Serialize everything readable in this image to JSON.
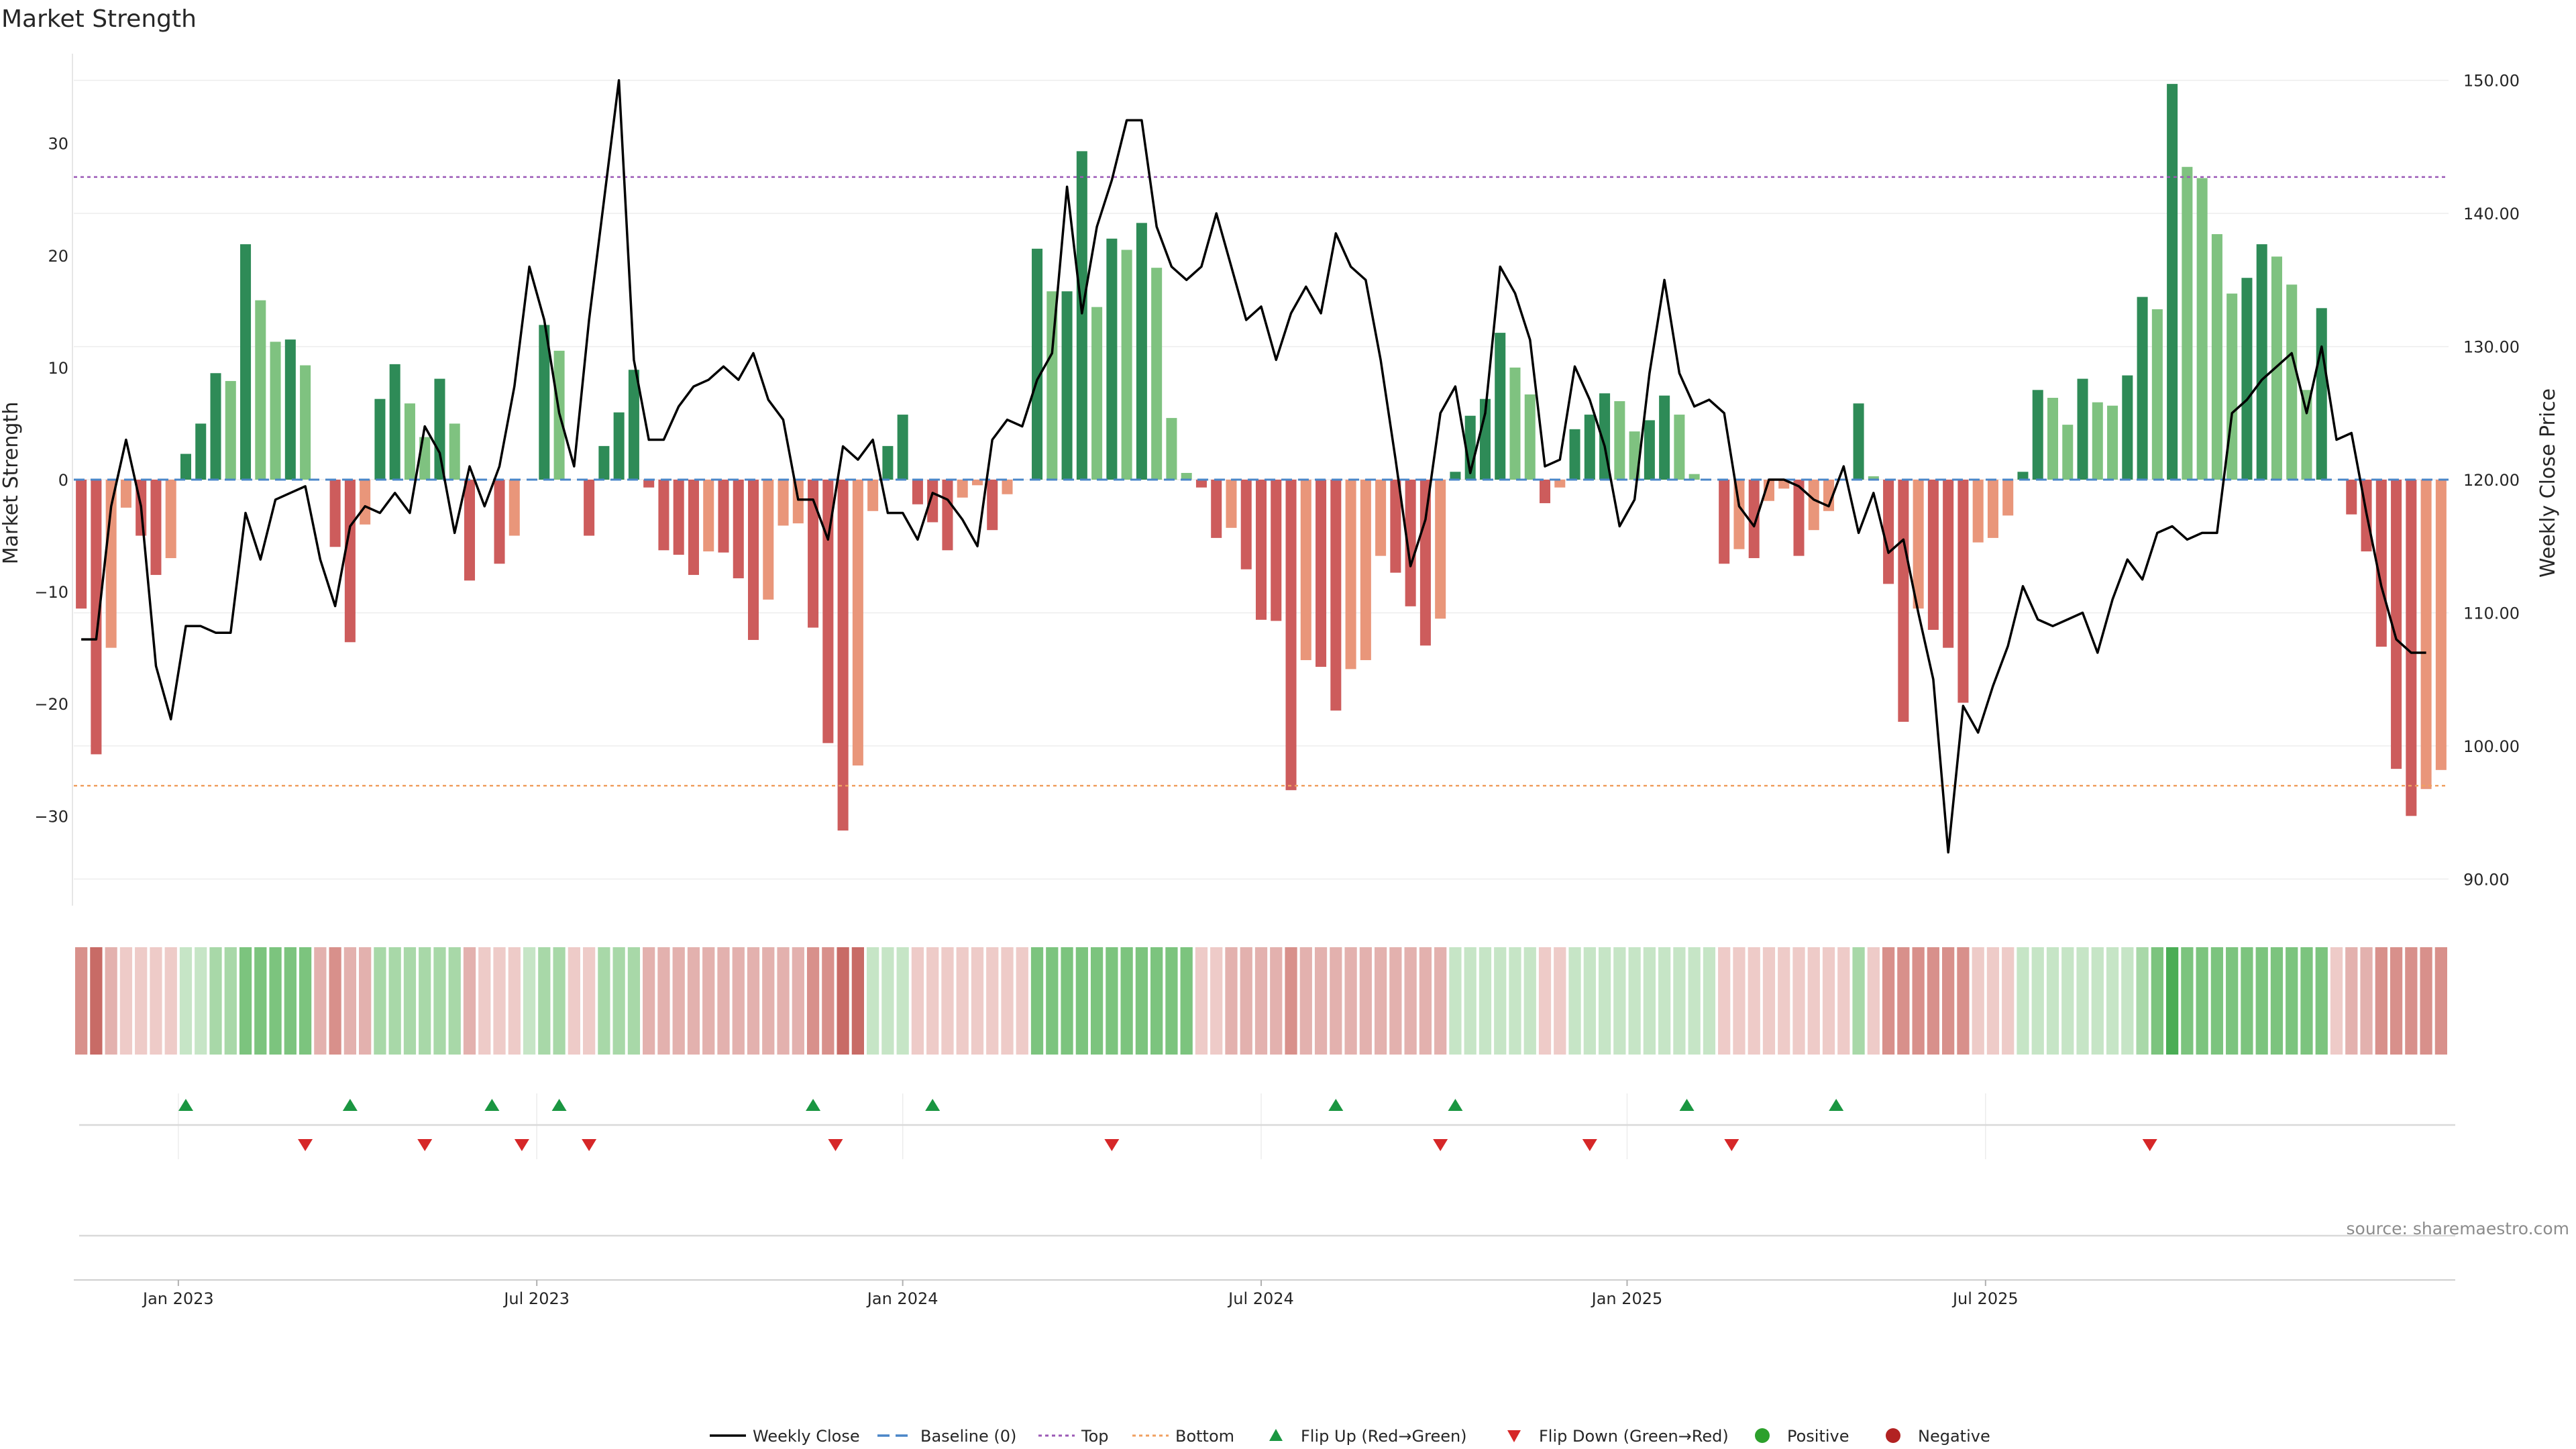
{
  "chart_data": {
    "type": "bar",
    "title": "Market Strength",
    "ylabel": "Market Strength",
    "y2label": "Weekly Close Price",
    "ylim": [
      -38,
      38
    ],
    "y2lim": [
      88,
      152
    ],
    "yticks": [
      -30,
      -20,
      -10,
      0,
      10,
      20,
      30
    ],
    "y2ticks": [
      "90.00",
      "100.00",
      "110.00",
      "120.00",
      "130.00",
      "140.00",
      "150.00"
    ],
    "y2tick_values": [
      90,
      100,
      110,
      120,
      130,
      140,
      150
    ],
    "xtick_labels": [
      "Jan 2023",
      "Jul 2023",
      "Jan 2024",
      "Jul 2024",
      "Jan 2025",
      "Jul 2025"
    ],
    "xtick_weeks": [
      6.5,
      30.5,
      55,
      79,
      103.5,
      127.5
    ],
    "top_line": 27,
    "bottom_line": -27.3,
    "source": "source: sharemaestro.com",
    "strength": [
      -11.5,
      -24.5,
      -15,
      -2.5,
      -5,
      -8.5,
      -7,
      2.3,
      5,
      9.5,
      8.8,
      21,
      16,
      12.3,
      12.5,
      10.2,
      0,
      -6,
      -14.5,
      -4,
      7.2,
      10.3,
      6.8,
      3.8,
      9,
      5,
      -9,
      0,
      -7.5,
      -5,
      0,
      13.8,
      11.5,
      0,
      -5,
      3,
      6,
      9.8,
      -0.7,
      -6.3,
      -6.7,
      -8.5,
      -6.4,
      -6.5,
      -8.8,
      -14.3,
      -10.7,
      -4.1,
      -3.9,
      -13.2,
      -23.5,
      -31.3,
      -25.5,
      -2.8,
      3,
      5.8,
      -2.2,
      -3.8,
      -6.3,
      -1.6,
      -0.5,
      -4.5,
      -1.3,
      0,
      20.6,
      16.8,
      16.8,
      29.3,
      15.4,
      21.5,
      20.5,
      22.9,
      18.9,
      5.5,
      0.6,
      -0.7,
      -5.2,
      -4.3,
      -8,
      -12.5,
      -12.6,
      -27.7,
      -16.1,
      -16.7,
      -20.6,
      -16.9,
      -16.1,
      -6.8,
      -8.3,
      -11.3,
      -14.8,
      -12.4,
      0.7,
      5.7,
      7.2,
      13.1,
      10,
      7.6,
      -2.1,
      -0.7,
      4.5,
      5.8,
      7.7,
      7,
      4.3,
      5.3,
      7.5,
      5.8,
      0.5,
      0,
      -7.5,
      -6.2,
      -7,
      -1.9,
      -0.8,
      -6.8,
      -4.5,
      -2.8,
      0,
      6.8,
      0.3,
      -9.3,
      -21.6,
      -11.5,
      -13.4,
      -15,
      -19.9,
      -5.6,
      -5.2,
      -3.2,
      0.7,
      8,
      7.3,
      4.9,
      9,
      6.9,
      6.6,
      9.3,
      16.3,
      15.2,
      35.3,
      27.9,
      26.9,
      21.9,
      16.6,
      18,
      21,
      19.9,
      17.4,
      8,
      15.3,
      0,
      -3.1,
      -6.4,
      -14.9,
      -25.8,
      -30,
      -27.6,
      -25.9
    ],
    "weekly_close": [
      108,
      108,
      118,
      123,
      118,
      106,
      102,
      109,
      109,
      108.5,
      108.5,
      117.5,
      114,
      118.5,
      119,
      119.5,
      114,
      110.5,
      116.5,
      118,
      117.5,
      119,
      117.5,
      124,
      122,
      116,
      121,
      118,
      121,
      127,
      136,
      132,
      125,
      121,
      132,
      141,
      150,
      129,
      123,
      123,
      125.5,
      127,
      127.5,
      128.5,
      127.5,
      129.5,
      126,
      124.5,
      118.5,
      118.5,
      115.5,
      122.5,
      121.5,
      123,
      117.5,
      117.5,
      115.5,
      119,
      118.5,
      117,
      115,
      123,
      124.5,
      124,
      127.5,
      129.5,
      142,
      132.5,
      139,
      142.5,
      147,
      147,
      139,
      136,
      135,
      136,
      140,
      136,
      132,
      133,
      129,
      132.5,
      134.5,
      132.5,
      138.5,
      136,
      135,
      129,
      121.5,
      113.5,
      117,
      125,
      127,
      120.5,
      125,
      136,
      134,
      130.5,
      121,
      121.5,
      128.5,
      126,
      122.5,
      116.5,
      118.5,
      128,
      135,
      128,
      125.5,
      126,
      125,
      118,
      116.5,
      120,
      120,
      119.5,
      118.5,
      118,
      121,
      116,
      119,
      114.5,
      115.5,
      110,
      105,
      92,
      103,
      101,
      104.5,
      107.5,
      112,
      109.5,
      109,
      109.5,
      110,
      107,
      111,
      114,
      112.5,
      116,
      116.5,
      115.5,
      116,
      116,
      125,
      126,
      127.5,
      128.5,
      129.5,
      125,
      130,
      123,
      123.5,
      117.5,
      112,
      108,
      107,
      107
    ],
    "heat_strip_levels": [
      -3,
      -4,
      -2,
      -1,
      -1,
      -1,
      -1,
      1,
      1,
      2,
      2,
      3,
      3,
      3,
      3,
      3,
      -2,
      -3,
      -2,
      -2,
      2,
      2,
      2,
      2,
      2,
      2,
      -2,
      -1,
      -1,
      -1,
      1,
      2,
      2,
      -1,
      -1,
      2,
      2,
      2,
      -2,
      -2,
      -2,
      -2,
      -2,
      -2,
      -2,
      -2,
      -2,
      -2,
      -2,
      -3,
      -3,
      -4,
      -4,
      1,
      1,
      1,
      -1,
      -1,
      -1,
      -1,
      -1,
      -1,
      -1,
      -1,
      3,
      3,
      3,
      3,
      3,
      3,
      3,
      3,
      3,
      3,
      3,
      -1,
      -1,
      -2,
      -2,
      -2,
      -2,
      -3,
      -2,
      -2,
      -2,
      -2,
      -2,
      -2,
      -2,
      -2,
      -2,
      -2,
      1,
      1,
      1,
      1,
      1,
      1,
      -1,
      -1,
      1,
      1,
      1,
      1,
      1,
      1,
      1,
      1,
      1,
      1,
      -1,
      -1,
      -1,
      -1,
      -1,
      -1,
      -1,
      -1,
      -1,
      2,
      -1,
      -3,
      -3,
      -3,
      -3,
      -3,
      -3,
      -1,
      -1,
      -1,
      1,
      1,
      1,
      1,
      1,
      1,
      1,
      1,
      2,
      3,
      4,
      3,
      3,
      3,
      3,
      3,
      3,
      3,
      3,
      3,
      3,
      -1,
      -2,
      -2,
      -3,
      -3,
      -3,
      -3,
      -3
    ],
    "flip_up_weeks": [
      7,
      18,
      27.5,
      32,
      49,
      57,
      84,
      92,
      107.5,
      117.5
    ],
    "flip_down_weeks": [
      15,
      23,
      29.5,
      34,
      50.5,
      69,
      91,
      101,
      110.5,
      138.5
    ],
    "colors": {
      "pos_strong": "#2e8b57",
      "pos_weak": "#7fc280",
      "neg_strong": "#cd5c5c",
      "neg_weak": "#e9967a",
      "line": "#000000",
      "baseline": "#4a86c8",
      "top": "#9b59b6",
      "bottom": "#f0a060",
      "flip_up": "#1a9641",
      "flip_down": "#d62728",
      "positive": "#2ca02c",
      "negative": "#b22222"
    },
    "legend": [
      {
        "label": "Weekly Close",
        "kind": "line",
        "color": "#000000"
      },
      {
        "label": "Baseline (0)",
        "kind": "dash",
        "color": "#4a86c8"
      },
      {
        "label": "Top",
        "kind": "dot",
        "color": "#9b59b6"
      },
      {
        "label": "Bottom",
        "kind": "dot",
        "color": "#f0a060"
      },
      {
        "label": "Flip Up (Red→Green)",
        "kind": "up",
        "color": "#1a9641"
      },
      {
        "label": "Flip Down (Green→Red)",
        "kind": "down",
        "color": "#d62728"
      },
      {
        "label": "Positive",
        "kind": "circle",
        "color": "#2ca02c"
      },
      {
        "label": "Negative",
        "kind": "circle",
        "color": "#b22222"
      }
    ]
  }
}
